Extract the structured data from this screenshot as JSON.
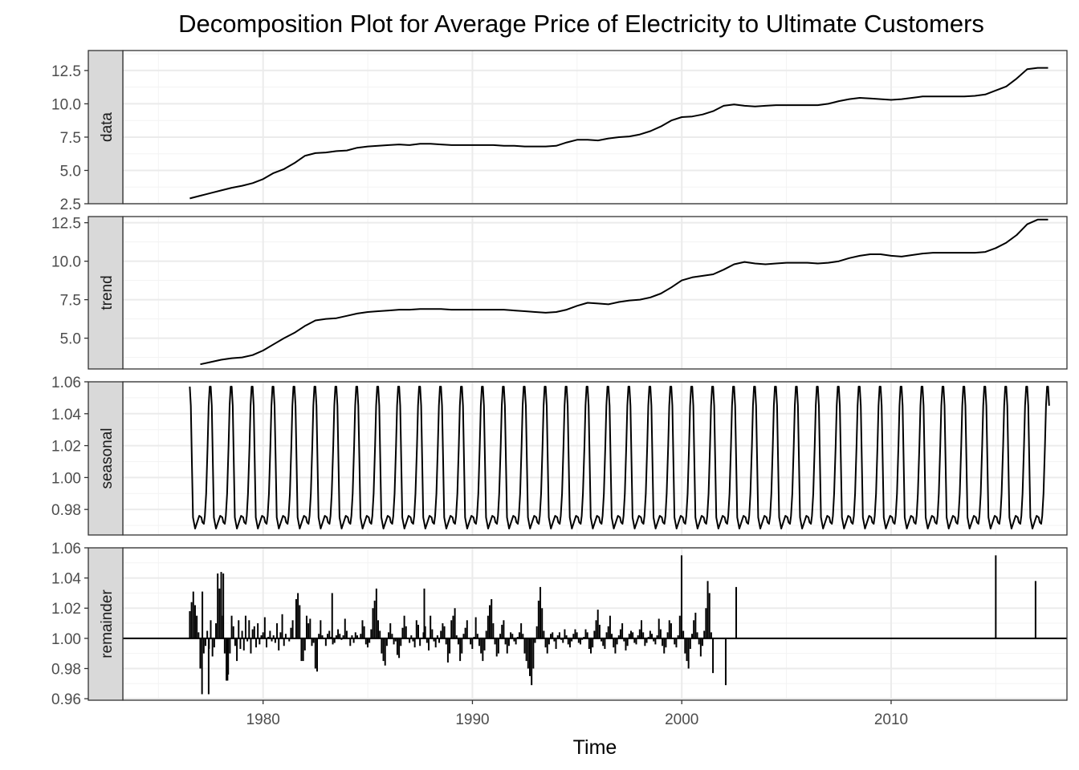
{
  "chart_data": {
    "type": "line",
    "title": "Decomposition Plot for Average Price of Electricity to Ultimate Customers",
    "xlabel": "Time",
    "xlim": [
      1973.3,
      2018.4
    ],
    "x_ticks": [
      1980,
      1990,
      2000,
      2010
    ],
    "x_tick_labels": [
      "1980",
      "1990",
      "2000",
      "2010"
    ],
    "grid": true,
    "theme": "bw",
    "series_style": {
      "line_color": "#000000",
      "strip_fill": "#d9d9d9",
      "grid_color": "#ebebeb"
    },
    "panels": [
      {
        "name": "data",
        "type": "line",
        "ylim": [
          2.5,
          14.0
        ],
        "y_ticks": [
          2.5,
          5.0,
          7.5,
          10.0,
          12.5
        ],
        "y_tick_labels": [
          "2.5",
          "5.0",
          "7.5",
          "10.0",
          "12.5"
        ],
        "x": [
          1976.5,
          1977.0,
          1977.5,
          1978.0,
          1978.5,
          1979.0,
          1979.5,
          1980.0,
          1980.5,
          1981.0,
          1981.5,
          1982.0,
          1982.5,
          1983.0,
          1983.5,
          1984.0,
          1984.5,
          1985.0,
          1985.5,
          1986.0,
          1986.5,
          1987.0,
          1987.5,
          1988.0,
          1988.5,
          1989.0,
          1989.5,
          1990.0,
          1990.5,
          1991.0,
          1991.5,
          1992.0,
          1992.5,
          1993.0,
          1993.5,
          1994.0,
          1994.5,
          1995.0,
          1995.5,
          1996.0,
          1996.5,
          1997.0,
          1997.5,
          1998.0,
          1998.5,
          1999.0,
          1999.5,
          2000.0,
          2000.5,
          2001.0,
          2001.5,
          2002.0,
          2002.5,
          2003.0,
          2003.5,
          2004.0,
          2004.5,
          2005.0,
          2005.5,
          2006.0,
          2006.5,
          2007.0,
          2007.5,
          2008.0,
          2008.5,
          2009.0,
          2009.5,
          2010.0,
          2010.5,
          2011.0,
          2011.5,
          2012.0,
          2012.5,
          2013.0,
          2013.5,
          2014.0,
          2014.5,
          2015.0,
          2015.5,
          2016.0,
          2016.5,
          2017.0,
          2017.5
        ],
        "values": [
          2.9,
          3.1,
          3.3,
          3.5,
          3.7,
          3.85,
          4.05,
          4.35,
          4.8,
          5.1,
          5.55,
          6.1,
          6.3,
          6.35,
          6.45,
          6.5,
          6.7,
          6.8,
          6.85,
          6.9,
          6.95,
          6.9,
          7.0,
          7.0,
          6.95,
          6.9,
          6.9,
          6.9,
          6.9,
          6.9,
          6.85,
          6.85,
          6.8,
          6.8,
          6.8,
          6.85,
          7.1,
          7.3,
          7.3,
          7.25,
          7.4,
          7.5,
          7.55,
          7.7,
          7.95,
          8.3,
          8.75,
          9.0,
          9.05,
          9.2,
          9.45,
          9.85,
          9.95,
          9.85,
          9.8,
          9.85,
          9.9,
          9.9,
          9.9,
          9.9,
          9.9,
          10.0,
          10.2,
          10.35,
          10.45,
          10.4,
          10.35,
          10.3,
          10.35,
          10.45,
          10.55,
          10.55,
          10.55,
          10.55,
          10.55,
          10.6,
          10.7,
          11.0,
          11.3,
          11.9,
          12.6,
          12.7,
          12.7
        ],
        "description_note": ""
      },
      {
        "name": "trend",
        "type": "line",
        "ylim": [
          3.0,
          12.9
        ],
        "y_ticks": [
          5.0,
          7.5,
          10.0,
          12.5
        ],
        "y_tick_labels": [
          "5.0",
          "7.5",
          "10.0",
          "12.5"
        ],
        "x": [
          1977.0,
          1977.5,
          1978.0,
          1978.5,
          1979.0,
          1979.5,
          1980.0,
          1980.5,
          1981.0,
          1981.5,
          1982.0,
          1982.5,
          1983.0,
          1983.5,
          1984.0,
          1984.5,
          1985.0,
          1985.5,
          1986.0,
          1986.5,
          1987.0,
          1987.5,
          1988.0,
          1988.5,
          1989.0,
          1989.5,
          1990.0,
          1990.5,
          1991.0,
          1991.5,
          1992.0,
          1992.5,
          1993.0,
          1993.5,
          1994.0,
          1994.5,
          1995.0,
          1995.5,
          1996.0,
          1996.5,
          1997.0,
          1997.5,
          1998.0,
          1998.5,
          1999.0,
          1999.5,
          2000.0,
          2000.5,
          2001.0,
          2001.5,
          2002.0,
          2002.5,
          2003.0,
          2003.5,
          2004.0,
          2004.5,
          2005.0,
          2005.5,
          2006.0,
          2006.5,
          2007.0,
          2007.5,
          2008.0,
          2008.5,
          2009.0,
          2009.5,
          2010.0,
          2010.5,
          2011.0,
          2011.5,
          2012.0,
          2012.5,
          2013.0,
          2013.5,
          2014.0,
          2014.5,
          2015.0,
          2015.5,
          2016.0,
          2016.5,
          2017.0,
          2017.5
        ],
        "values": [
          3.3,
          3.45,
          3.6,
          3.7,
          3.75,
          3.9,
          4.2,
          4.6,
          5.0,
          5.35,
          5.8,
          6.15,
          6.25,
          6.3,
          6.45,
          6.6,
          6.7,
          6.75,
          6.8,
          6.85,
          6.85,
          6.9,
          6.9,
          6.9,
          6.85,
          6.85,
          6.85,
          6.85,
          6.85,
          6.85,
          6.8,
          6.75,
          6.7,
          6.65,
          6.7,
          6.85,
          7.1,
          7.3,
          7.25,
          7.2,
          7.35,
          7.45,
          7.5,
          7.65,
          7.9,
          8.3,
          8.75,
          8.95,
          9.05,
          9.15,
          9.45,
          9.8,
          9.95,
          9.85,
          9.8,
          9.85,
          9.9,
          9.9,
          9.9,
          9.85,
          9.9,
          10.0,
          10.2,
          10.35,
          10.45,
          10.45,
          10.35,
          10.3,
          10.4,
          10.5,
          10.55,
          10.55,
          10.55,
          10.55,
          10.55,
          10.6,
          10.85,
          11.2,
          11.7,
          12.4,
          12.7,
          12.7
        ]
      },
      {
        "name": "seasonal",
        "type": "line",
        "ylim": [
          0.964,
          1.06
        ],
        "y_ticks": [
          0.98,
          1.0,
          1.02,
          1.04,
          1.06
        ],
        "y_tick_labels": [
          "0.98",
          "1.00",
          "1.02",
          "1.04",
          "1.06"
        ],
        "x_start": 1976.5,
        "x_end": 2017.58,
        "period": 1.0,
        "phase": 0.5,
        "cycle_fraction_x": [
          0.0,
          0.05,
          0.1,
          0.15,
          0.25,
          0.35,
          0.45,
          0.55,
          0.6,
          0.67,
          0.72,
          0.78,
          0.85,
          0.9,
          0.95,
          1.0
        ],
        "cycle_values": [
          1.057,
          1.045,
          1.01,
          0.975,
          0.968,
          0.972,
          0.976,
          0.975,
          0.972,
          0.971,
          0.976,
          0.99,
          1.02,
          1.045,
          1.057,
          1.057
        ]
      },
      {
        "name": "remainder",
        "type": "bar",
        "baseline": 1.0,
        "ylim": [
          0.959,
          1.06
        ],
        "y_ticks": [
          0.96,
          0.98,
          1.0,
          1.02,
          1.04,
          1.06
        ],
        "y_tick_labels": [
          "0.96",
          "0.98",
          "1.00",
          "1.02",
          "1.04",
          "1.06"
        ],
        "x_start": 1976.5,
        "x_end": 2017.5,
        "step": 0.0833,
        "largest_spikes_x": [
          1977.1,
          1977.4,
          1978.1,
          1978.3,
          1983.3,
          1987.7,
          2002.1,
          2002.6,
          2015.0,
          2016.9
        ],
        "largest_spikes_values": [
          1.031,
          0.963,
          1.043,
          0.972,
          1.03,
          1.033,
          0.969,
          1.034,
          1.055,
          1.038
        ],
        "values": [
          1.018,
          1.024,
          1.031,
          1.022,
          1.015,
          1.004,
          0.98,
          0.963,
          0.99,
          0.995,
          1.005,
          0.993,
          1.012,
          0.988,
          0.994,
          1.01,
          1.043,
          1.033,
          1.044,
          1.015,
          0.99,
          0.972,
          0.976,
          0.99,
          1.015,
          1.008,
          0.995,
          0.985,
          1.012,
          0.993,
          1.005,
          0.992,
          1.015,
          0.998,
          1.012,
          0.99,
          1.006,
          1.008,
          0.994,
          1.01,
          0.996,
          1.002,
          1.004,
          1.014,
          0.994,
          1.001,
          1.005,
          0.998,
          1.002,
          0.997,
          1.01,
          0.992,
          1.004,
          1.016,
          0.995,
          1.003,
          1.0,
          0.998,
          1.007,
          1.012,
          1.0,
          1.026,
          1.03,
          1.022,
          0.985,
          0.985,
          0.992,
          1.015,
          1.01,
          1.013,
          0.995,
          0.997,
          0.98,
          0.978,
          1.003,
          1.012,
          1.002,
          1.0,
          0.995,
          1.003,
          1.005,
          1.001,
          0.996,
          0.997,
          1.002,
          1.006,
          1.003,
          0.999,
          1.002,
          1.013,
          1.005,
          1.0,
          0.995,
          1.002,
          0.997,
          1.004,
          1.002,
          1.0,
          1.003,
          1.012,
          1.008,
          0.996,
          0.994,
          0.997,
          1.006,
          1.02,
          1.025,
          1.033,
          1.012,
          1.005,
          0.99,
          0.985,
          0.982,
          0.995,
          1.004,
          1.01,
          1.003,
          0.996,
          0.998,
          0.989,
          0.987,
          0.995,
          1.007,
          1.015,
          1.008,
          1.0,
          0.997,
          1.002,
          0.998,
          0.994,
          1.012,
          1.009,
          0.995,
          1.0,
          1.004,
          1.008,
          0.997,
          0.992,
          1.015,
          1.006,
          0.998,
          0.994,
          1.002,
          0.997,
          1.005,
          1.01,
          1.008,
          0.996,
          0.984,
          0.99,
          1.012,
          1.015,
          1.02,
          1.002,
          0.996,
          0.985,
          0.99,
          1.003,
          1.007,
          1.012,
          1.0,
          0.996,
          0.993,
          1.001,
          1.014,
          1.003,
          0.995,
          0.99,
          0.985,
          0.992,
          1.005,
          1.015,
          1.022,
          1.026,
          1.01,
          0.996,
          0.988,
          0.99,
          1.003,
          1.009,
          1.012,
          0.996,
          0.99,
          0.995,
          1.004,
          1.003,
          0.998,
          0.996,
          1.001,
          1.004,
          1.01,
          1.003,
          0.99,
          0.985,
          0.98,
          0.975,
          0.969,
          0.98,
          0.997,
          1.008,
          1.025,
          1.034,
          1.02,
          1.005,
          0.994,
          0.99,
          0.996,
          1.003,
          1.004,
          0.998,
          0.993,
          1.002,
          1.004,
          0.999,
          0.997,
          1.006,
          1.002,
          0.996,
          0.994,
          0.998,
          1.003,
          1.006,
          1.004,
          0.997,
          0.996,
          0.999,
          1.001,
          1.006,
          1.004,
          0.993,
          0.99,
          0.994,
          1.005,
          1.012,
          1.019,
          1.009,
          0.998,
          0.995,
          0.993,
          1.004,
          1.008,
          1.015,
          1.003,
          0.994,
          0.99,
          0.996,
          1.002,
          1.006,
          1.01,
          0.998,
          0.992,
          0.995,
          1.003,
          1.005,
          1.004,
          0.997,
          0.996,
          1.002,
          1.006,
          1.012,
          1.004,
          0.995,
          0.997,
          1.001,
          1.005,
          1.003,
          0.998,
          0.996,
          1.002,
          1.013,
          1.006,
          0.995,
          0.99,
          0.994,
          1.004,
          1.012,
          1.01,
          1.0,
          0.996,
          0.994,
          1.002,
          1.015,
          1.055,
          1.005,
          0.99,
          0.985,
          0.98,
          0.993,
          1.003,
          1.012,
          1.017,
          1.004,
          0.996,
          0.988,
          0.995,
          1.005,
          1.02,
          1.038,
          1.03,
          1.004,
          0.977
        ]
      }
    ]
  }
}
